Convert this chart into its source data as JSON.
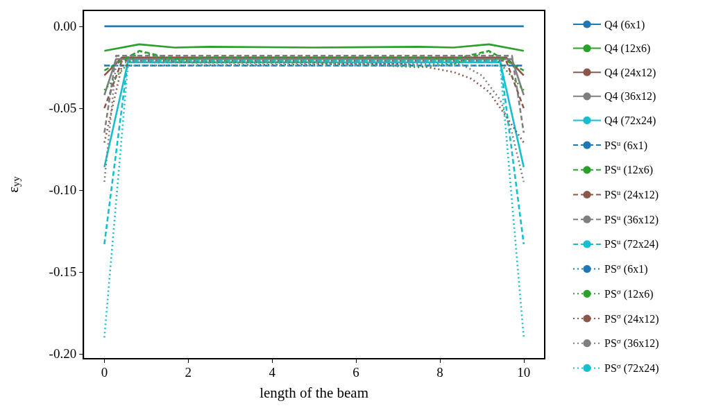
{
  "chart_data": {
    "type": "line",
    "xlabel": "length of the beam",
    "ylabel": "ε$_{yy}$",
    "xlim": [
      -0.5,
      10.5
    ],
    "xticks": [
      0,
      2,
      4,
      6,
      8,
      10
    ],
    "ylim": [
      -0.203,
      0.0097
    ],
    "yticks": [
      {
        "value": 0,
        "label": "0.00"
      },
      {
        "value": -0.05,
        "label": "-0.05"
      },
      {
        "value": -0.1,
        "label": "-0.10"
      },
      {
        "value": -0.15,
        "label": "-0.15"
      },
      {
        "value": -0.2,
        "label": "-0.20"
      }
    ],
    "grid": false,
    "legend": "right",
    "marker": "none",
    "line_style": "solid",
    "series": [
      {
        "name": "Q4 (6x1)",
        "color": "#1f77b4",
        "x": [
          0,
          10
        ],
        "values": [
          0,
          0
        ]
      },
      {
        "name": "Q4 (12x6)",
        "color": "#2ca02c",
        "x": [
          0,
          0.83,
          1.67,
          2.5,
          5,
          7.5,
          8.33,
          9.17,
          10
        ],
        "values": [
          -0.015,
          -0.011,
          -0.013,
          -0.0125,
          -0.013,
          -0.0125,
          -0.013,
          -0.011,
          -0.015
        ]
      },
      {
        "name": "Q4 (24x12)",
        "color": "#8c564b",
        "x": [
          0,
          0.42,
          9.58,
          10
        ],
        "values": [
          -0.03,
          -0.019,
          -0.019,
          -0.03
        ]
      },
      {
        "name": "Q4 (36x12)",
        "color": "#7f7f7f",
        "x": [
          0,
          0.28,
          9.72,
          10
        ],
        "values": [
          -0.042,
          -0.02,
          -0.02,
          -0.042
        ]
      },
      {
        "name": "Q4 (72x24)",
        "color": "#17becf",
        "x": [
          0,
          0.56,
          9.44,
          10
        ],
        "values": [
          -0.086,
          -0.022,
          -0.022,
          -0.086
        ]
      },
      {
        "name": "PS$^{u}$ (6x1)",
        "color": "#1f77b4",
        "line_style": "dashed",
        "x": [
          0,
          10
        ],
        "values": [
          -0.024,
          -0.024
        ]
      },
      {
        "name": "PS$^{u}$ (12x6)",
        "color": "#2ca02c",
        "line_style": "dashed",
        "x": [
          0,
          0.83,
          1.67,
          2.5,
          5,
          7.5,
          8.33,
          9.17,
          10
        ],
        "values": [
          -0.027,
          -0.015,
          -0.02,
          -0.019,
          -0.019,
          -0.019,
          -0.02,
          -0.015,
          -0.027
        ]
      },
      {
        "name": "PS$^{u}$ (24x12)",
        "color": "#8c564b",
        "line_style": "dashed",
        "x": [
          0,
          0.42,
          9.58,
          10
        ],
        "values": [
          -0.05,
          -0.021,
          -0.021,
          -0.05
        ]
      },
      {
        "name": "PS$^{u}$ (36x12)",
        "color": "#7f7f7f",
        "line_style": "dashed",
        "x": [
          0,
          0.28,
          9.72,
          10
        ],
        "values": [
          -0.065,
          -0.018,
          -0.018,
          -0.065
        ]
      },
      {
        "name": "PS$^{u}$ (72x24)",
        "color": "#17becf",
        "line_style": "dashed",
        "x": [
          0,
          0.56,
          9.44,
          10
        ],
        "values": [
          -0.133,
          -0.021,
          -0.021,
          -0.133
        ]
      },
      {
        "name": "PS$^{σ}$ (6x1)",
        "color": "#1f77b4",
        "line_style": "dotted",
        "x": [
          0,
          10
        ],
        "values": [
          -0.024,
          -0.024
        ]
      },
      {
        "name": "PS$^{σ}$ (12x6)",
        "color": "#2ca02c",
        "line_style": "dotted",
        "x": [
          0,
          0.83,
          1.67,
          5,
          7.5,
          8.33,
          9.17,
          10
        ],
        "values": [
          -0.039,
          -0.015,
          -0.022,
          -0.022,
          -0.025,
          -0.023,
          -0.015,
          -0.039
        ]
      },
      {
        "name": "PS$^{σ}$ (24x12)",
        "color": "#8c564b",
        "line_style": "dotted",
        "x": [
          0,
          0.42,
          7.08,
          7.5,
          7.92,
          8.33,
          8.75,
          9.17,
          9.58,
          10
        ],
        "values": [
          -0.071,
          -0.024,
          -0.023,
          -0.024,
          -0.026,
          -0.028,
          -0.032,
          -0.04,
          -0.055,
          -0.071
        ]
      },
      {
        "name": "PS$^{σ}$ (36x12)",
        "color": "#7f7f7f",
        "line_style": "dotted",
        "x": [
          0,
          0.28,
          8.5,
          9,
          9.44,
          9.72,
          10
        ],
        "values": [
          -0.095,
          -0.022,
          -0.023,
          -0.03,
          -0.045,
          -0.065,
          -0.095
        ]
      },
      {
        "name": "PS$^{σ}$ (72x24)",
        "color": "#17becf",
        "line_style": "dotted",
        "x": [
          0,
          0.56,
          9.44,
          10
        ],
        "values": [
          -0.19,
          -0.024,
          -0.024,
          -0.19
        ]
      }
    ]
  }
}
